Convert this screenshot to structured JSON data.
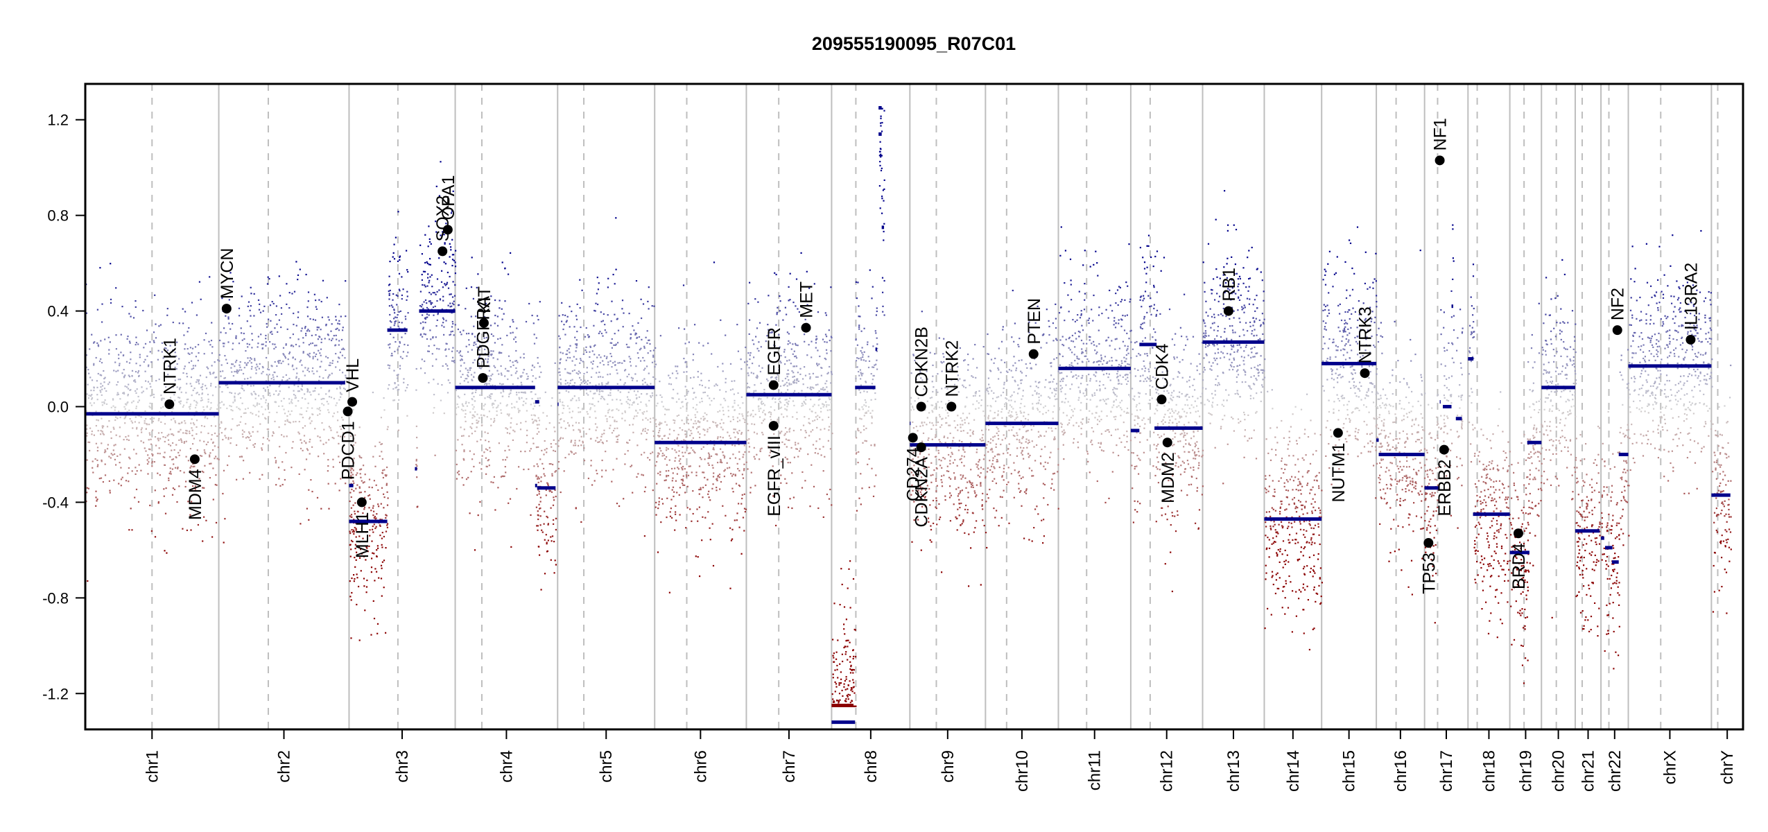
{
  "chart_data": {
    "type": "scatter",
    "title": "209555190095_R07C01",
    "xlabel": "",
    "ylabel": "",
    "ylim": [
      -1.35,
      1.35
    ],
    "yticks": [
      1.2,
      0.8,
      0.4,
      0.0,
      -0.4,
      -0.8,
      -1.2
    ],
    "ytick_labels": [
      "1.2",
      "0.8",
      "0.4",
      "0.0",
      "-0.4",
      "-0.8",
      "-1.2"
    ],
    "grid": false,
    "colors": {
      "gain": "#00008b",
      "loss": "#8b0000",
      "neutral": "#d3d3d3",
      "segment": "#00008b",
      "segment_loss_outlier": "#8b0000",
      "gene_marker": "#000000",
      "chr_boundary": "#bebebe",
      "centromere": "#bebebe"
    },
    "chromosomes": [
      {
        "name": "chr1",
        "length": 249,
        "centromere": 0.5
      },
      {
        "name": "chr2",
        "length": 243,
        "centromere": 0.38
      },
      {
        "name": "chr3",
        "length": 198,
        "centromere": 0.46
      },
      {
        "name": "chr4",
        "length": 191,
        "centromere": 0.26
      },
      {
        "name": "chr5",
        "length": 181,
        "centromere": 0.27
      },
      {
        "name": "chr6",
        "length": 171,
        "centromere": 0.35
      },
      {
        "name": "chr7",
        "length": 159,
        "centromere": 0.38
      },
      {
        "name": "chr8",
        "length": 146,
        "centromere": 0.31
      },
      {
        "name": "chr9",
        "length": 141,
        "centromere": 0.35
      },
      {
        "name": "chr10",
        "length": 136,
        "centromere": 0.29
      },
      {
        "name": "chr11",
        "length": 135,
        "centromere": 0.39
      },
      {
        "name": "chr12",
        "length": 134,
        "centromere": 0.27
      },
      {
        "name": "chr13",
        "length": 115,
        "centromere": 0.0
      },
      {
        "name": "chr14",
        "length": 107,
        "centromere": 0.0
      },
      {
        "name": "chr15",
        "length": 102,
        "centromere": 0.0
      },
      {
        "name": "chr16",
        "length": 90,
        "centromere": 0.41
      },
      {
        "name": "chr17",
        "length": 81,
        "centromere": 0.3
      },
      {
        "name": "chr18",
        "length": 78,
        "centromere": 0.22
      },
      {
        "name": "chr19",
        "length": 59,
        "centromere": 0.45
      },
      {
        "name": "chr20",
        "length": 63,
        "centromere": 0.44
      },
      {
        "name": "chr21",
        "length": 48,
        "centromere": 0.27
      },
      {
        "name": "chr22",
        "length": 51,
        "centromere": 0.29
      },
      {
        "name": "chrX",
        "length": 155,
        "centromere": 0.39
      },
      {
        "name": "chrY",
        "length": 59,
        "centromere": 0.2
      }
    ],
    "segments": [
      {
        "chr": "chr1",
        "start": 0.0,
        "end": 1.0,
        "value": -0.03
      },
      {
        "chr": "chr2",
        "start": 0.0,
        "end": 0.97,
        "value": 0.1
      },
      {
        "chr": "chr3",
        "start": 0.0,
        "end": 0.04,
        "value": -0.33
      },
      {
        "chr": "chr3",
        "start": 0.0,
        "end": 0.36,
        "value": -0.48
      },
      {
        "chr": "chr3",
        "start": 0.36,
        "end": 0.55,
        "value": 0.32
      },
      {
        "chr": "chr3",
        "start": 0.62,
        "end": 0.64,
        "value": -0.26
      },
      {
        "chr": "chr3",
        "start": 0.66,
        "end": 1.0,
        "value": 0.4
      },
      {
        "chr": "chr4",
        "start": 0.0,
        "end": 0.78,
        "value": 0.08
      },
      {
        "chr": "chr4",
        "start": 0.78,
        "end": 0.82,
        "value": 0.02
      },
      {
        "chr": "chr4",
        "start": 0.78,
        "end": 0.8,
        "value": -0.33
      },
      {
        "chr": "chr4",
        "start": 0.8,
        "end": 0.98,
        "value": -0.34
      },
      {
        "chr": "chr5",
        "start": 0.0,
        "end": 0.01,
        "value": 0.01
      },
      {
        "chr": "chr5",
        "start": 0.0,
        "end": 1.0,
        "value": 0.08
      },
      {
        "chr": "chr6",
        "start": 0.0,
        "end": 1.0,
        "value": -0.15
      },
      {
        "chr": "chr7",
        "start": 0.0,
        "end": 1.0,
        "value": 0.05
      },
      {
        "chr": "chr8",
        "start": 0.0,
        "end": 0.28,
        "value": -1.25
      },
      {
        "chr": "chr8",
        "start": 0.0,
        "end": 0.3,
        "value": -1.32
      },
      {
        "chr": "chr8",
        "start": 0.3,
        "end": 0.56,
        "value": 0.08
      },
      {
        "chr": "chr8",
        "start": 0.56,
        "end": 0.58,
        "value": 0.24
      },
      {
        "chr": "chr8",
        "start": 0.6,
        "end": 0.64,
        "value": 1.25
      },
      {
        "chr": "chr8",
        "start": 0.6,
        "end": 0.64,
        "value": 1.14
      },
      {
        "chr": "chr8",
        "start": 0.64,
        "end": 0.67,
        "value": 0.75
      },
      {
        "chr": "chr9",
        "start": 0.0,
        "end": 0.01,
        "value": -0.07
      },
      {
        "chr": "chr9",
        "start": 0.0,
        "end": 1.0,
        "value": -0.16
      },
      {
        "chr": "chr10",
        "start": 0.0,
        "end": 1.0,
        "value": -0.07
      },
      {
        "chr": "chr11",
        "start": 0.0,
        "end": 1.0,
        "value": 0.16
      },
      {
        "chr": "chr12",
        "start": 0.0,
        "end": 0.12,
        "value": -0.1
      },
      {
        "chr": "chr12",
        "start": 0.12,
        "end": 0.36,
        "value": 0.26
      },
      {
        "chr": "chr12",
        "start": 0.33,
        "end": 1.0,
        "value": -0.09
      },
      {
        "chr": "chr13",
        "start": 0.0,
        "end": 1.0,
        "value": 0.27
      },
      {
        "chr": "chr14",
        "start": 0.0,
        "end": 1.0,
        "value": -0.47
      },
      {
        "chr": "chr15",
        "start": 0.0,
        "end": 1.0,
        "value": 0.18
      },
      {
        "chr": "chr16",
        "start": 0.0,
        "end": 0.05,
        "value": -0.14
      },
      {
        "chr": "chr16",
        "start": 0.05,
        "end": 1.0,
        "value": -0.2
      },
      {
        "chr": "chr17",
        "start": 0.0,
        "end": 0.35,
        "value": -0.34
      },
      {
        "chr": "chr17",
        "start": 0.35,
        "end": 0.37,
        "value": 0.02
      },
      {
        "chr": "chr17",
        "start": 0.42,
        "end": 0.62,
        "value": 0.0
      },
      {
        "chr": "chr17",
        "start": 0.62,
        "end": 0.66,
        "value": 0.42
      },
      {
        "chr": "chr17",
        "start": 0.72,
        "end": 0.86,
        "value": -0.05
      },
      {
        "chr": "chr18",
        "start": 0.0,
        "end": 0.13,
        "value": 0.2
      },
      {
        "chr": "chr18",
        "start": 0.12,
        "end": 1.0,
        "value": -0.45
      },
      {
        "chr": "chr19",
        "start": 0.0,
        "end": 0.62,
        "value": -0.61
      },
      {
        "chr": "chr19",
        "start": 0.55,
        "end": 1.0,
        "value": -0.15
      },
      {
        "chr": "chr20",
        "start": 0.0,
        "end": 1.0,
        "value": 0.08
      },
      {
        "chr": "chr21",
        "start": 0.0,
        "end": 0.95,
        "value": -0.52
      },
      {
        "chr": "chr22",
        "start": 0.0,
        "end": 0.12,
        "value": -0.55
      },
      {
        "chr": "chr22",
        "start": 0.15,
        "end": 0.42,
        "value": -0.59
      },
      {
        "chr": "chr22",
        "start": 0.4,
        "end": 0.65,
        "value": -0.65
      },
      {
        "chr": "chr22",
        "start": 0.65,
        "end": 1.0,
        "value": -0.2
      },
      {
        "chr": "chrX",
        "start": 0.0,
        "end": 1.0,
        "value": 0.17
      },
      {
        "chr": "chrY",
        "start": 0.0,
        "end": 0.6,
        "value": -0.37
      }
    ],
    "genes": [
      {
        "name": "NTRK1",
        "chr": "chr1",
        "pos": 0.63,
        "value": 0.01,
        "label_side": "above"
      },
      {
        "name": "MDM4",
        "chr": "chr1",
        "pos": 0.82,
        "value": -0.22,
        "label_side": "below"
      },
      {
        "name": "MYCN",
        "chr": "chr2",
        "pos": 0.06,
        "value": 0.41,
        "label_side": "above"
      },
      {
        "name": "PDCD1",
        "chr": "chr2",
        "pos": 0.99,
        "value": -0.02,
        "label_side": "below"
      },
      {
        "name": "VHL",
        "chr": "chr3",
        "pos": 0.03,
        "value": 0.02,
        "label_side": "above"
      },
      {
        "name": "MLH1",
        "chr": "chr3",
        "pos": 0.12,
        "value": -0.4,
        "label_side": "below"
      },
      {
        "name": "SOX2",
        "chr": "chr3",
        "pos": 0.88,
        "value": 0.65,
        "label_side": "above"
      },
      {
        "name": "OPA1",
        "chr": "chr3",
        "pos": 0.93,
        "value": 0.74,
        "label_side": "above"
      },
      {
        "name": "PDGFRA",
        "chr": "chr4",
        "pos": 0.27,
        "value": 0.12,
        "label_side": "above"
      },
      {
        "name": "KIT",
        "chr": "chr4",
        "pos": 0.28,
        "value": 0.35,
        "label_side": "above"
      },
      {
        "name": "EGFR",
        "chr": "chr7",
        "pos": 0.32,
        "value": 0.09,
        "label_side": "above"
      },
      {
        "name": "EGFR_vIII",
        "chr": "chr7",
        "pos": 0.32,
        "value": -0.08,
        "label_side": "below"
      },
      {
        "name": "MET",
        "chr": "chr7",
        "pos": 0.7,
        "value": 0.33,
        "label_side": "above"
      },
      {
        "name": "CD274",
        "chr": "chr9",
        "pos": 0.04,
        "value": -0.13,
        "label_side": "below"
      },
      {
        "name": "CDKN2A",
        "chr": "chr9",
        "pos": 0.15,
        "value": -0.17,
        "label_side": "below"
      },
      {
        "name": "CDKN2B",
        "chr": "chr9",
        "pos": 0.15,
        "value": 0.0,
        "label_side": "above"
      },
      {
        "name": "NTRK2",
        "chr": "chr9",
        "pos": 0.55,
        "value": 0.0,
        "label_side": "above"
      },
      {
        "name": "PTEN",
        "chr": "chr10",
        "pos": 0.66,
        "value": 0.22,
        "label_side": "above"
      },
      {
        "name": "CDK4",
        "chr": "chr12",
        "pos": 0.43,
        "value": 0.03,
        "label_side": "above"
      },
      {
        "name": "MDM2",
        "chr": "chr12",
        "pos": 0.51,
        "value": -0.15,
        "label_side": "below"
      },
      {
        "name": "RB1",
        "chr": "chr13",
        "pos": 0.42,
        "value": 0.4,
        "label_side": "above"
      },
      {
        "name": "NUTM1",
        "chr": "chr15",
        "pos": 0.3,
        "value": -0.11,
        "label_side": "below"
      },
      {
        "name": "NTRK3",
        "chr": "chr15",
        "pos": 0.79,
        "value": 0.14,
        "label_side": "above"
      },
      {
        "name": "TP53",
        "chr": "chr17",
        "pos": 0.09,
        "value": -0.57,
        "label_side": "below"
      },
      {
        "name": "NF1",
        "chr": "chr17",
        "pos": 0.35,
        "value": 1.03,
        "label_side": "above"
      },
      {
        "name": "ERBB2",
        "chr": "chr17",
        "pos": 0.45,
        "value": -0.18,
        "label_side": "below"
      },
      {
        "name": "BRD4",
        "chr": "chr19",
        "pos": 0.27,
        "value": -0.53,
        "label_side": "below"
      },
      {
        "name": "NF2",
        "chr": "chr22",
        "pos": 0.6,
        "value": 0.32,
        "label_side": "above"
      },
      {
        "name": "IL13RA2",
        "chr": "chrX",
        "pos": 0.75,
        "value": 0.28,
        "label_side": "above"
      }
    ]
  }
}
